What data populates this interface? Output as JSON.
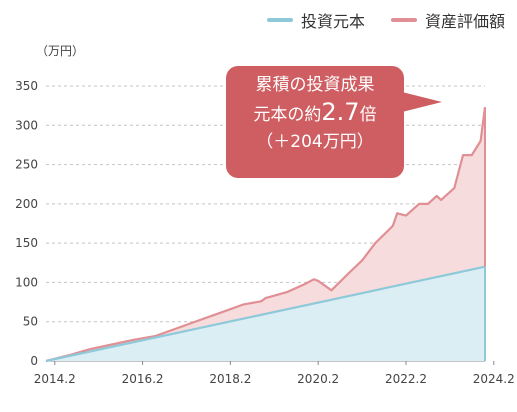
{
  "chart_data": {
    "type": "area",
    "unit_label": "（万円）",
    "legend": [
      {
        "label": "投資元本",
        "color": "#8ec9da"
      },
      {
        "label": "資産評価額",
        "color": "#e08f94"
      }
    ],
    "x_ticks": [
      "2014.2",
      "2016.2",
      "2018.2",
      "2020.2",
      "2022.2",
      "2024.2"
    ],
    "y_ticks": [
      0,
      50,
      100,
      150,
      200,
      250,
      300,
      350
    ],
    "ylim": [
      0,
      350
    ],
    "xlim": [
      2014.0,
      2024.0
    ],
    "series": [
      {
        "name": "投資元本",
        "color": "#8ec9da",
        "fill": "#dbeef4",
        "x": [
          2014.0,
          2024.0
        ],
        "y": [
          0,
          120
        ]
      },
      {
        "name": "資産評価額",
        "color": "#e08f94",
        "fill": "#f6dcdc",
        "x": [
          2014.0,
          2014.5,
          2015.0,
          2015.5,
          2016.0,
          2016.5,
          2017.0,
          2017.5,
          2018.0,
          2018.5,
          2018.9,
          2019.0,
          2019.5,
          2019.9,
          2020.1,
          2020.2,
          2020.5,
          2020.9,
          2021.2,
          2021.5,
          2021.9,
          2022.0,
          2022.2,
          2022.5,
          2022.7,
          2022.9,
          2023.0,
          2023.3,
          2023.5,
          2023.7,
          2023.9,
          2024.0
        ],
        "y": [
          0,
          7,
          15,
          21,
          27,
          32,
          42,
          52,
          62,
          72,
          76,
          80,
          88,
          98,
          104,
          102,
          90,
          112,
          128,
          150,
          172,
          188,
          185,
          200,
          200,
          210,
          205,
          220,
          262,
          262,
          280,
          323
        ]
      }
    ],
    "annotation": {
      "line1": "累積の投資成果",
      "line2_pre": "元本の約",
      "line2_num": "2.7",
      "line2_post": "倍",
      "line3": "（＋204万円）"
    }
  }
}
